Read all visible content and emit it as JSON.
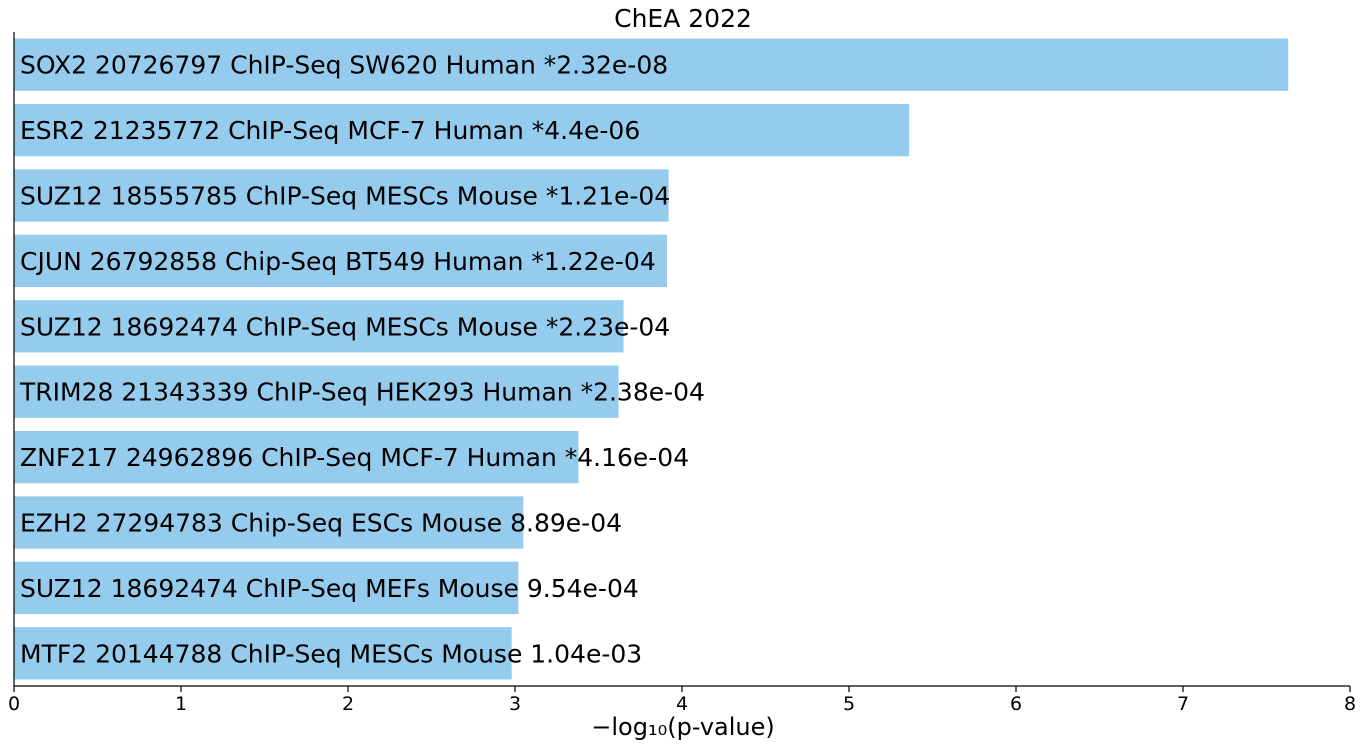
{
  "chart_data": {
    "type": "bar",
    "orientation": "horizontal",
    "title": "ChEA 2022",
    "xlabel": "−log₁₀(p-value)",
    "xlim": [
      0,
      8
    ],
    "xticks": [
      0,
      1,
      2,
      3,
      4,
      5,
      6,
      7,
      8
    ],
    "grid": false,
    "bar_color": "#95CBED",
    "bars": [
      {
        "term": "SOX2 20726797 ChIP-Seq SW620 Human",
        "pvalue_label": "*2.32e-08",
        "value": 7.63
      },
      {
        "term": "ESR2 21235772 ChIP-Seq MCF-7 Human",
        "pvalue_label": "*4.4e-06",
        "value": 5.36
      },
      {
        "term": "SUZ12 18555785 ChIP-Seq MESCs Mouse",
        "pvalue_label": "*1.21e-04",
        "value": 3.92
      },
      {
        "term": "CJUN 26792858 Chip-Seq BT549 Human",
        "pvalue_label": "*1.22e-04",
        "value": 3.91
      },
      {
        "term": "SUZ12 18692474 ChIP-Seq MESCs Mouse",
        "pvalue_label": "*2.23e-04",
        "value": 3.65
      },
      {
        "term": "TRIM28 21343339 ChIP-Seq HEK293 Human",
        "pvalue_label": "*2.38e-04",
        "value": 3.62
      },
      {
        "term": "ZNF217 24962896 ChIP-Seq MCF-7 Human",
        "pvalue_label": "*4.16e-04",
        "value": 3.38
      },
      {
        "term": "EZH2 27294783 Chip-Seq ESCs Mouse",
        "pvalue_label": "8.89e-04",
        "value": 3.05
      },
      {
        "term": "SUZ12 18692474 ChIP-Seq MEFs Mouse",
        "pvalue_label": "9.54e-04",
        "value": 3.02
      },
      {
        "term": "MTF2 20144788 ChIP-Seq MESCs Mouse",
        "pvalue_label": "1.04e-03",
        "value": 2.98
      }
    ]
  }
}
